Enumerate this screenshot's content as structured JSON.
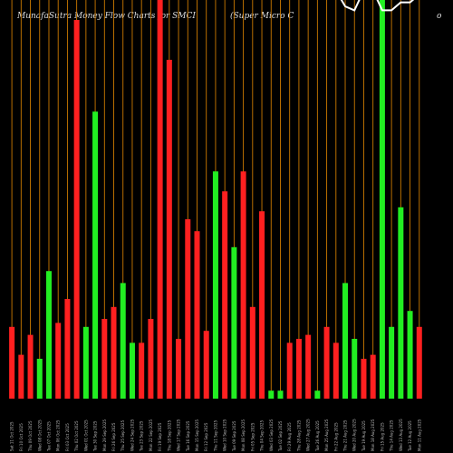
{
  "header": {
    "site_title": "MunafaSutra  Money Flow  Charts for SMCI",
    "company": "(Super Micro  C",
    "corner": "o"
  },
  "colors": {
    "up": "#22ee22",
    "down": "#ff2020",
    "grid": "#cc7a00",
    "line": "#ffffff",
    "background": "#000000"
  },
  "chart_data": {
    "type": "bar",
    "grid": true,
    "legend": "none",
    "volume_ylim": [
      0,
      100
    ],
    "price_ylim": [
      0,
      100
    ],
    "categories": [
      "Sat 11 Oct 2025",
      "Fri 10 Oct 2025",
      "Thu 09 Oct 2025",
      "Wed 08 Oct 2025",
      "Tue 07 Oct 2025",
      "Mon 06 Oct 2025",
      "Fri 03 Oct 2025",
      "Thu 02 Oct 2025",
      "Wed 01 Oct 2025",
      "Tue 30 Sep 2025",
      "Mon 29 Sep 2025",
      "Fri 26 Sep 2025",
      "Thu 25 Sep 2025",
      "Wed 24 Sep 2025",
      "Tue 23 Sep 2025",
      "Mon 22 Sep 2025",
      "Fri 19 Sep 2025",
      "Thu 18 Sep 2025",
      "Wed 17 Sep 2025",
      "Tue 16 Sep 2025",
      "Mon 15 Sep 2025",
      "Fri 12 Sep 2025",
      "Thu 11 Sep 2025",
      "Wed 10 Sep 2025",
      "Tue 09 Sep 2025",
      "Mon 08 Sep 2025",
      "Fri 05 Sep 2025",
      "Thu 04 Sep 2025",
      "Wed 03 Sep 2025",
      "Tue 02 Sep 2025",
      "Fri 29 Aug 2025",
      "Thu 28 Aug 2025",
      "Wed 27 Aug 2025",
      "Tue 26 Aug 2025",
      "Mon 25 Aug 2025",
      "Fri 22 Aug 2025",
      "Thu 21 Aug 2025",
      "Wed 20 Aug 2025",
      "Tue 19 Aug 2025",
      "Mon 18 Aug 2025",
      "Fri 15 Aug 2025",
      "Thu 14 Aug 2025",
      "Wed 13 Aug 2025",
      "Tue 12 Aug 2025",
      "Mon 11 Aug 2025"
    ],
    "direction": [
      "down",
      "down",
      "down",
      "up",
      "up",
      "down",
      "down",
      "down",
      "up",
      "up",
      "down",
      "down",
      "up",
      "up",
      "down",
      "down",
      "down",
      "down",
      "down",
      "down",
      "down",
      "down",
      "up",
      "down",
      "up",
      "down",
      "down",
      "down",
      "up",
      "up",
      "down",
      "down",
      "down",
      "up",
      "down",
      "down",
      "up",
      "up",
      "down",
      "down",
      "up",
      "up",
      "up",
      "up",
      "down"
    ],
    "volume": [
      18,
      11,
      16,
      10,
      32,
      19,
      25,
      95,
      18,
      72,
      20,
      23,
      29,
      14,
      14,
      20,
      100,
      85,
      15,
      45,
      42,
      17,
      57,
      52,
      38,
      57,
      23,
      47,
      2,
      2,
      14,
      15,
      16,
      2,
      18,
      14,
      29,
      15,
      10,
      11,
      100,
      18,
      48,
      22,
      18
    ],
    "price": [
      100,
      100,
      100,
      100,
      100,
      100,
      100,
      96,
      96,
      100,
      100,
      81,
      79,
      75,
      76,
      77,
      72,
      70,
      69,
      67,
      63,
      60,
      59,
      61,
      62,
      58,
      54,
      54,
      53,
      54,
      51,
      50,
      51,
      48,
      47,
      49,
      45,
      44,
      49,
      49,
      44,
      44,
      46,
      46,
      48
    ]
  }
}
